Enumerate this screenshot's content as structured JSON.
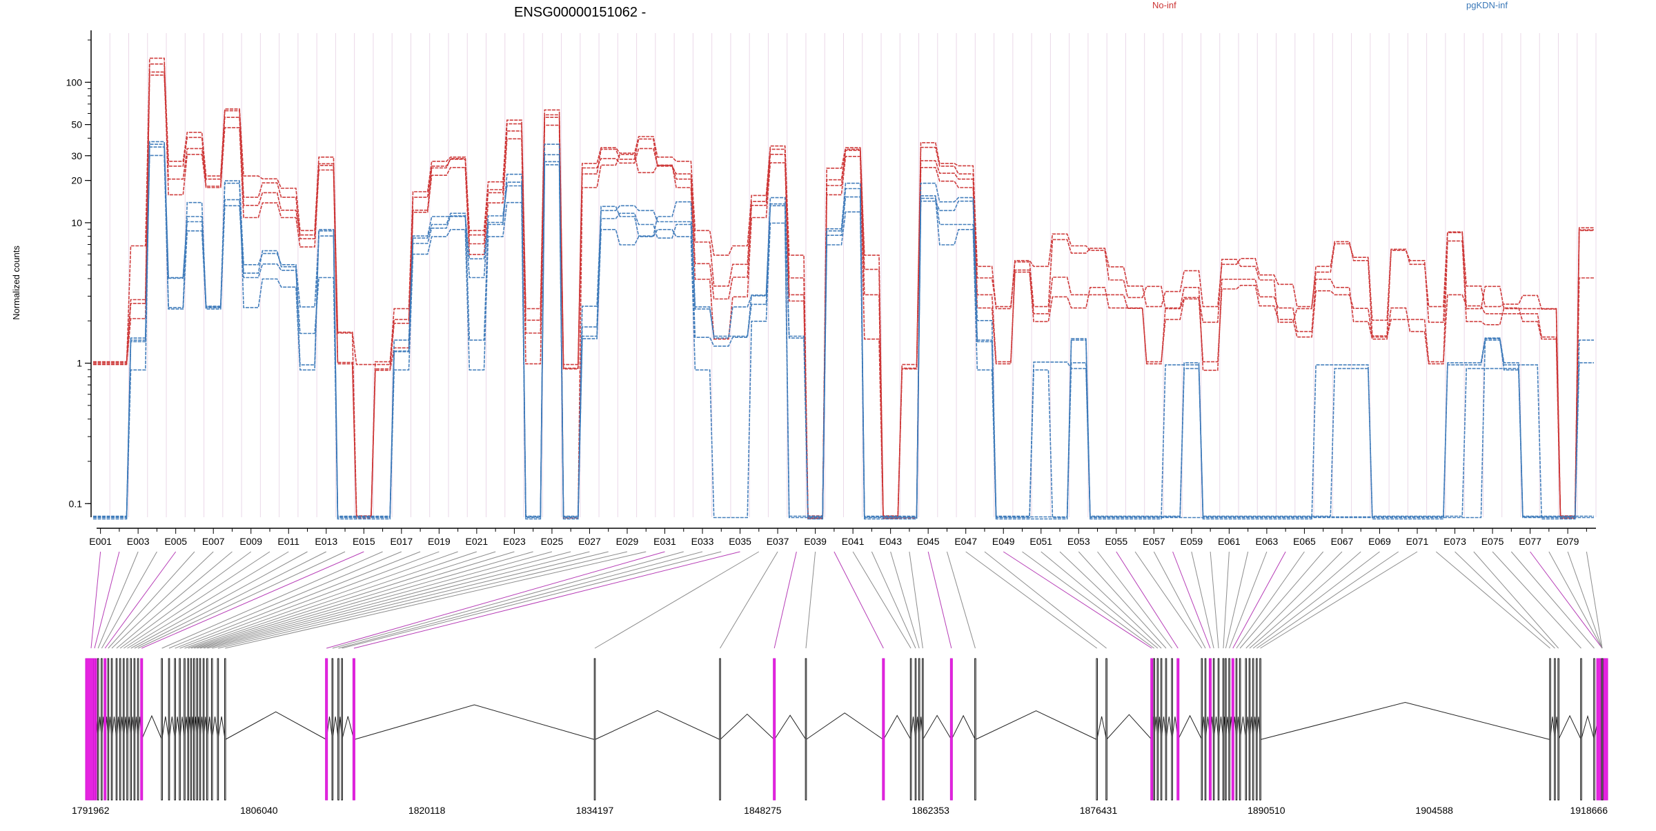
{
  "chart_data": {
    "type": "line",
    "title": "ENSG00000151062 -",
    "ylabel": "Normalized counts",
    "y_scale": "log",
    "ylim": [
      0.08,
      200
    ],
    "y_ticks": [
      0.1,
      1,
      10,
      20,
      30,
      50,
      100
    ],
    "legend": [
      {
        "name": "No-inf",
        "color": "#cc3333",
        "position": "top-right"
      },
      {
        "name": "pgKDN-inf",
        "color": "#3a78b8",
        "position": "top-right"
      }
    ],
    "exon_labels": [
      "E001",
      "E003",
      "E005",
      "E007",
      "E009",
      "E011",
      "E013",
      "E015",
      "E017",
      "E019",
      "E021",
      "E023",
      "E025",
      "E027",
      "E029",
      "E031",
      "E033",
      "E035",
      "E037",
      "E039",
      "E041",
      "E043",
      "E045",
      "E047",
      "E049",
      "E051",
      "E053",
      "E055",
      "E057",
      "E059",
      "E061",
      "E063",
      "E065",
      "E067",
      "E069",
      "E071",
      "E073",
      "E075",
      "E077",
      "E079"
    ],
    "exon_count": 80,
    "series": [
      {
        "name": "No-inf",
        "color": "#cc3333",
        "values": [
          1,
          1,
          7,
          138,
          28,
          45,
          22,
          66,
          22,
          21,
          18,
          9,
          30,
          1.7,
          1.0,
          1.0,
          2.5,
          17,
          28,
          30,
          9,
          20,
          55,
          2.5,
          65,
          1.0,
          27,
          35,
          32,
          42,
          30,
          28,
          9,
          6,
          7,
          16,
          36,
          6,
          0.08,
          25,
          35,
          6,
          0.08,
          1.0,
          38,
          27,
          26,
          5,
          2.5,
          5.5,
          5,
          8.5,
          7,
          6.5,
          4,
          3,
          3.6,
          2.5,
          3,
          2,
          5.6,
          5,
          4,
          2,
          2.5,
          5,
          7.5,
          5.5,
          1.6,
          6.5,
          5.5,
          2,
          8.7,
          2.5,
          3.6,
          2.5,
          2.5,
          2.5,
          0.08,
          9
        ]
      },
      {
        "name": "No-inf",
        "color": "#cc3333",
        "values": [
          1,
          1,
          2.8,
          117,
          25,
          40,
          18,
          62,
          15,
          19,
          15,
          7.6,
          26,
          1.0,
          0.08,
          0.9,
          1.9,
          15,
          25,
          28,
          7,
          17,
          50,
          2.0,
          58,
          0.9,
          22,
          33,
          28,
          39,
          25,
          22,
          7.2,
          3.5,
          5,
          14,
          33,
          4,
          0.08,
          20,
          33,
          4.6,
          0.08,
          0.9,
          34,
          25,
          22,
          4,
          2.5,
          5.2,
          2.5,
          7.5,
          6,
          6.5,
          4.8,
          3.5,
          2.5,
          3.2,
          4.5,
          2.5,
          5,
          5.5,
          4.2,
          3.6,
          2.5,
          4.4,
          7,
          5.6,
          2,
          6.4,
          5,
          2.5,
          8.5,
          3.5,
          2.5,
          2.6,
          3,
          2.4,
          0.08,
          4
        ]
      },
      {
        "name": "No-inf",
        "color": "#cc3333",
        "values": [
          1,
          1,
          2.1,
          150,
          16,
          31,
          18,
          48,
          11,
          14,
          11,
          6.8,
          24,
          1.0,
          0.08,
          0.9,
          1.3,
          12,
          22,
          25,
          6,
          14,
          40,
          1.0,
          50,
          0.08,
          18,
          26,
          31,
          23,
          26,
          18,
          4,
          1.5,
          3,
          11,
          27,
          2.8,
          0.08,
          16,
          30,
          1.5,
          0.08,
          0.08,
          25,
          20,
          18,
          2.5,
          1.0,
          4.5,
          2,
          3,
          2.5,
          3.5,
          2.5,
          2.5,
          1.0,
          2.5,
          3.5,
          0.9,
          4,
          4,
          3,
          2.5,
          1.7,
          4,
          3.5,
          2,
          1.5,
          2.5,
          1.7,
          1,
          7.5,
          2,
          1.9,
          2.5,
          2,
          1.5,
          0.08,
          9
        ]
      },
      {
        "name": "No-inf",
        "color": "#cc3333",
        "values": [
          1,
          1,
          2.6,
          110,
          20,
          33,
          20,
          55,
          13,
          16,
          12,
          8,
          25,
          1.6,
          0.08,
          1.0,
          2,
          12,
          24,
          28,
          8,
          16,
          44,
          1.6,
          55,
          0.9,
          24,
          28,
          26,
          33,
          25,
          20,
          5,
          2.8,
          4,
          13,
          30,
          3,
          0.08,
          18,
          32,
          3,
          0.08,
          0.9,
          27,
          22,
          20,
          3,
          1.0,
          4.5,
          2.2,
          4,
          3,
          3,
          3,
          2.4,
          1.0,
          2,
          2.8,
          1,
          3.3,
          3.5,
          2.5,
          2,
          1.5,
          3.2,
          3,
          2.4,
          1.5,
          2,
          2,
          1,
          3,
          2.5,
          2.2,
          2.2,
          2.2,
          1.5,
          0.08,
          9
        ]
      },
      {
        "name": "pgKDN-inf",
        "color": "#3a78b8",
        "values": [
          0.08,
          0.08,
          1.5,
          31,
          2.5,
          9,
          2.5,
          15,
          4.5,
          6.5,
          5,
          1.0,
          9,
          0.08,
          0.08,
          0.08,
          1.5,
          8,
          10,
          12,
          1.5,
          10,
          20,
          0.08,
          28,
          0.08,
          1.6,
          11,
          12,
          10,
          8,
          10,
          2.5,
          1.6,
          1.6,
          2.7,
          14,
          1.6,
          0.08,
          9,
          18,
          0.08,
          0.08,
          0.08,
          16,
          10,
          10,
          1.5,
          0.08,
          0.08,
          0.08,
          0.08,
          1.5,
          0.08,
          0.08,
          0.08,
          0.08,
          1.0,
          1.0,
          0.08,
          0.08,
          0.08,
          0.08,
          0.08,
          0.08,
          1.0,
          1.0,
          1.0,
          0.08,
          0.08,
          0.08,
          0.08,
          1.0,
          1.0,
          1.5,
          1.0,
          1.0,
          0.08,
          0.08,
          1.5
        ]
      },
      {
        "name": "pgKDN-inf",
        "color": "#3a78b8",
        "values": [
          0.08,
          0.08,
          1.4,
          34,
          4,
          10,
          2.5,
          13,
          4,
          5,
          4.5,
          1.6,
          4,
          0.08,
          0.08,
          0.08,
          1.2,
          7,
          9,
          11,
          4,
          11,
          18,
          0.08,
          30,
          0.08,
          2.5,
          12,
          13,
          12,
          10,
          10,
          1.5,
          1.3,
          1.5,
          3,
          13,
          0.08,
          0.08,
          8,
          15,
          0.08,
          0.08,
          0.08,
          14,
          12,
          14,
          1.4,
          0.08,
          0.08,
          1.0,
          1.0,
          0.9,
          0.08,
          0.08,
          0.08,
          0.08,
          0.08,
          0.9,
          0.08,
          0.08,
          0.08,
          0.08,
          0.08,
          0.08,
          0.08,
          0.9,
          0.9,
          0.08,
          0.08,
          0.08,
          0.08,
          0.08,
          0.9,
          0.9,
          0.9,
          0.08,
          0.08,
          0.08,
          0.08
        ]
      },
      {
        "name": "pgKDN-inf",
        "color": "#3a78b8",
        "values": [
          0.08,
          0.08,
          0.9,
          38,
          2.5,
          14,
          2.5,
          20,
          2.5,
          4,
          3.5,
          0.9,
          9,
          0.08,
          0.08,
          0.08,
          0.9,
          6,
          8,
          9,
          0.9,
          8,
          14,
          0.08,
          26,
          0.08,
          1.5,
          9,
          7,
          8,
          9,
          8,
          0.9,
          0.08,
          0.08,
          2,
          10,
          0.08,
          0.08,
          7,
          12,
          0.08,
          0.08,
          0.08,
          15,
          7,
          9,
          0.9,
          0.08,
          0.08,
          0.9,
          0.08,
          1.5,
          0.08,
          0.08,
          0.08,
          0.08,
          0.08,
          0.08,
          0.08,
          0.08,
          0.08,
          0.08,
          0.08,
          0.08,
          0.08,
          0.08,
          0.08,
          0.08,
          0.08,
          0.08,
          0.08,
          0.08,
          0.08,
          1.5,
          0.9,
          0.08,
          0.08,
          0.08,
          0.08
        ]
      },
      {
        "name": "pgKDN-inf",
        "color": "#3a78b8",
        "values": [
          0.08,
          0.08,
          1.5,
          36,
          4,
          11,
          2.5,
          19,
          5,
          6,
          5,
          2.5,
          8,
          0.08,
          0.08,
          0.08,
          1.2,
          8,
          11,
          11,
          5.5,
          10,
          22,
          0.08,
          36,
          0.08,
          1.8,
          13,
          11,
          8,
          11,
          14,
          2.5,
          1.5,
          2.5,
          3,
          15,
          1.5,
          0.08,
          9,
          19,
          0.08,
          0.08,
          0.08,
          19,
          14,
          15,
          2,
          0.08,
          0.08,
          0.08,
          0.08,
          1.0,
          0.08,
          0.08,
          0.08,
          0.08,
          0.08,
          1.0,
          0.08,
          0.08,
          0.08,
          0.08,
          0.08,
          0.08,
          0.08,
          0.08,
          0.08,
          0.08,
          0.08,
          0.08,
          0.08,
          1.0,
          1.0,
          1.5,
          1.0,
          0.08,
          0.08,
          0.08,
          1.0
        ]
      }
    ],
    "genomic_axis": {
      "ticks": [
        "1791962",
        "1806040",
        "1820118",
        "1834197",
        "1848275",
        "1862353",
        "1876431",
        "1890510",
        "1904588",
        "1918666"
      ]
    }
  }
}
